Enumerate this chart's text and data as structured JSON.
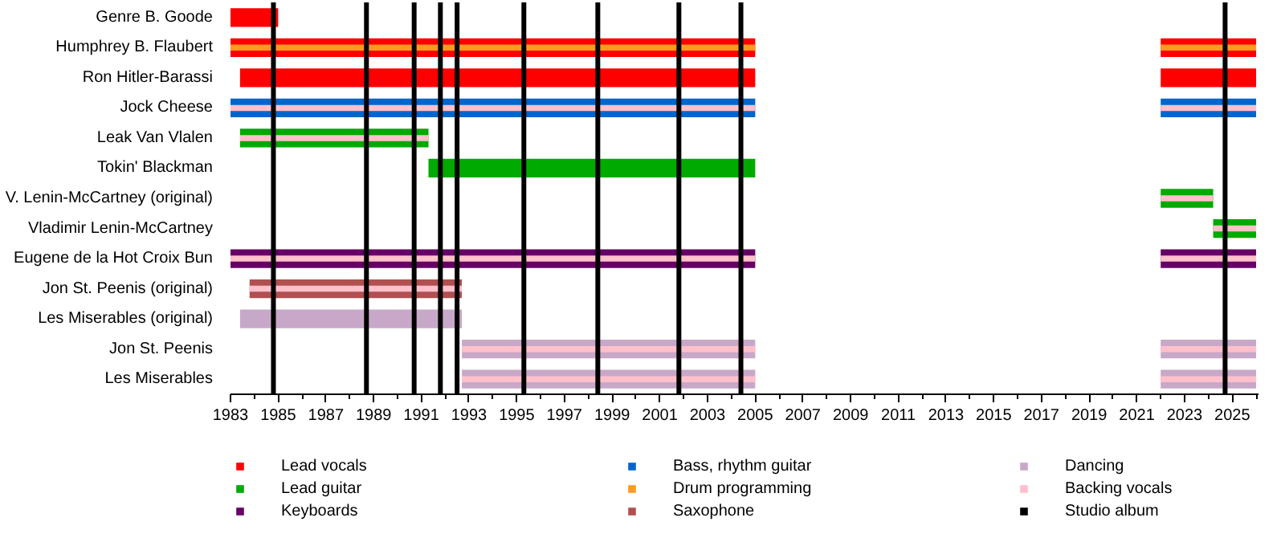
{
  "chart_data": {
    "type": "bar",
    "orientation": "horizontal",
    "categories": [
      "Genre B. Goode",
      "Humphrey B. Flaubert",
      "Ron Hitler-Barassi",
      "Jock Cheese",
      "Leak Van Vlalen",
      "Tokin' Blackman",
      "V. Lenin-McCartney (original)",
      "Vladimir Lenin-McCartney",
      "Eugene de la Hot Croix Bun",
      "Jon St. Peenis (original)",
      "Les Miserables (original)",
      "Jon St. Peenis",
      "Les Miserables"
    ],
    "xlim": [
      1983,
      2026.1
    ],
    "xticks": [
      1983,
      1985,
      1987,
      1989,
      1991,
      1993,
      1995,
      1997,
      1999,
      2001,
      2003,
      2005,
      2007,
      2009,
      2011,
      2013,
      2015,
      2017,
      2019,
      2021,
      2023,
      2025
    ],
    "legend": "bottom",
    "grid": false,
    "series": [
      {
        "name": "Lead vocals",
        "color": "#ff0000",
        "base": [
          1983,
          1983,
          1983.4,
          null,
          null,
          null,
          null,
          null,
          null,
          null,
          null,
          null,
          null
        ],
        "values": [
          2,
          22,
          21.6,
          null,
          null,
          null,
          null,
          null,
          null,
          null,
          null,
          null,
          null
        ]
      },
      {
        "color": "#ff0000",
        "base": [
          null,
          2022,
          2022,
          null,
          null,
          null,
          null,
          null,
          null,
          null,
          null,
          null,
          null
        ],
        "values": [
          null,
          4,
          4,
          null,
          null,
          null,
          null,
          null,
          null,
          null,
          null,
          null,
          null
        ]
      },
      {
        "name": "Lead guitar",
        "color": "#00aa00",
        "base": [
          null,
          null,
          null,
          null,
          1983.4,
          1991.3,
          2022,
          2024.2,
          null,
          null,
          null,
          null,
          null
        ],
        "values": [
          null,
          null,
          null,
          null,
          7.9,
          13.7,
          2.2,
          1.8,
          null,
          null,
          null,
          null,
          null
        ]
      },
      {
        "name": "Keyboards",
        "color": "#660066",
        "base": [
          null,
          null,
          null,
          null,
          null,
          null,
          null,
          null,
          1983,
          null,
          null,
          null,
          null
        ],
        "values": [
          null,
          null,
          null,
          null,
          null,
          null,
          null,
          null,
          22,
          null,
          null,
          null,
          null
        ]
      },
      {
        "color": "#660066",
        "base": [
          null,
          null,
          null,
          null,
          null,
          null,
          null,
          null,
          2022,
          null,
          null,
          null,
          null
        ],
        "values": [
          null,
          null,
          null,
          null,
          null,
          null,
          null,
          null,
          4,
          null,
          null,
          null,
          null
        ]
      },
      {
        "name": "Bass, rhythm guitar",
        "color": "#0066cc",
        "base": [
          null,
          null,
          null,
          1983,
          null,
          null,
          null,
          null,
          null,
          null,
          null,
          null,
          null
        ],
        "values": [
          null,
          null,
          null,
          22,
          null,
          null,
          null,
          null,
          null,
          null,
          null,
          null,
          null
        ]
      },
      {
        "color": "#0066cc",
        "base": [
          null,
          null,
          null,
          2022,
          null,
          null,
          null,
          null,
          null,
          null,
          null,
          null,
          null
        ],
        "values": [
          null,
          null,
          null,
          4,
          null,
          null,
          null,
          null,
          null,
          null,
          null,
          null,
          null
        ]
      },
      {
        "name": "Drum programming",
        "color": "#ff9922",
        "base": [
          null,
          1983,
          null,
          null,
          null,
          null,
          null,
          null,
          null,
          null,
          null,
          null,
          null
        ],
        "values": [
          null,
          22,
          null,
          null,
          null,
          null,
          null,
          null,
          null,
          null,
          null,
          null,
          null
        ]
      },
      {
        "color": "#ff9922",
        "base": [
          null,
          2022,
          null,
          null,
          null,
          null,
          null,
          null,
          null,
          null,
          null,
          null,
          null
        ],
        "values": [
          null,
          4,
          null,
          null,
          null,
          null,
          null,
          null,
          null,
          null,
          null,
          null,
          null
        ]
      },
      {
        "name": "Saxophone",
        "color": "#b05050",
        "base": [
          null,
          null,
          null,
          null,
          null,
          null,
          null,
          null,
          null,
          1983.8,
          null,
          null,
          null
        ],
        "values": [
          null,
          null,
          null,
          null,
          null,
          null,
          null,
          null,
          null,
          8.9,
          null,
          null,
          null
        ]
      },
      {
        "name": "Dancing",
        "color": "#c8a8c8",
        "base": [
          null,
          null,
          null,
          null,
          null,
          null,
          null,
          null,
          null,
          null,
          1983.4,
          1992.7,
          1992.7
        ],
        "values": [
          null,
          null,
          null,
          null,
          null,
          null,
          null,
          null,
          null,
          null,
          9.3,
          12.3,
          12.3
        ]
      },
      {
        "color": "#c8a8c8",
        "base": [
          null,
          null,
          null,
          null,
          null,
          null,
          null,
          null,
          null,
          null,
          null,
          2022,
          2022
        ],
        "values": [
          null,
          null,
          null,
          null,
          null,
          null,
          null,
          null,
          null,
          null,
          null,
          4,
          4
        ]
      },
      {
        "name": "Backing vocals",
        "color": "#ffc0cb",
        "base": [
          null,
          null,
          null,
          1983,
          1983.4,
          null,
          2022,
          2024.2,
          1983,
          1983.8,
          null,
          1992.7,
          1992.7
        ],
        "values": [
          null,
          null,
          null,
          22,
          7.9,
          null,
          2.2,
          1.8,
          22,
          8.9,
          null,
          12.3,
          12.3
        ]
      },
      {
        "color": "#ffc0cb",
        "base": [
          null,
          null,
          null,
          2022,
          null,
          null,
          null,
          null,
          2022,
          null,
          null,
          2022,
          2022
        ],
        "values": [
          null,
          null,
          null,
          4,
          null,
          null,
          null,
          null,
          4,
          null,
          null,
          4,
          4
        ]
      }
    ],
    "ref_lines": [
      {
        "axis": "x",
        "value": 1984.8,
        "label": "Studio album",
        "color": "#000000"
      },
      {
        "axis": "x",
        "value": 1988.7,
        "color": "#000000"
      },
      {
        "axis": "x",
        "value": 1990.7,
        "color": "#000000"
      },
      {
        "axis": "x",
        "value": 1991.8,
        "color": "#000000"
      },
      {
        "axis": "x",
        "value": 1992.5,
        "color": "#000000"
      },
      {
        "axis": "x",
        "value": 1995.3,
        "color": "#000000"
      },
      {
        "axis": "x",
        "value": 1998.4,
        "color": "#000000"
      },
      {
        "axis": "x",
        "value": 2001.8,
        "color": "#000000"
      },
      {
        "axis": "x",
        "value": 2004.4,
        "color": "#000000"
      },
      {
        "axis": "x",
        "value": 2024.7,
        "color": "#000000"
      }
    ]
  }
}
